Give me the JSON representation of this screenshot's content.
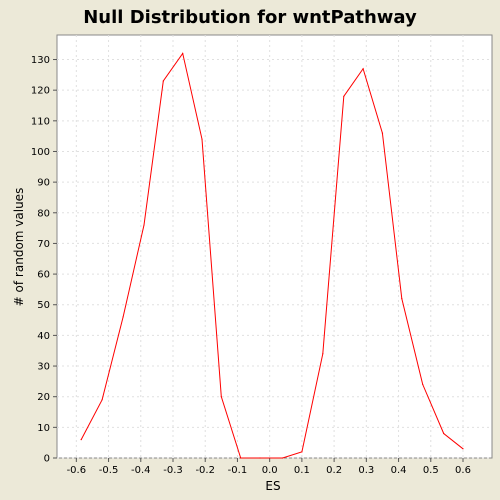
{
  "chart_data": {
    "type": "line",
    "title": "Null Distribution for wntPathway",
    "xlabel": "ES",
    "ylabel": "# of random values",
    "xlim": [
      -0.66,
      0.69
    ],
    "ylim": [
      0,
      138
    ],
    "x_ticks": [
      -0.6,
      -0.5,
      -0.4,
      -0.3,
      -0.2,
      -0.1,
      0.0,
      0.1,
      0.2,
      0.3,
      0.4,
      0.5,
      0.6
    ],
    "x_tick_labels": [
      "-0.6",
      "-0.5",
      "-0.4",
      "-0.3",
      "-0.2",
      "-0.1",
      "0.0",
      "0.1",
      "0.2",
      "0.3",
      "0.4",
      "0.5",
      "0.6"
    ],
    "y_ticks": [
      0,
      10,
      20,
      30,
      40,
      50,
      60,
      70,
      80,
      90,
      100,
      110,
      120,
      130
    ],
    "y_tick_labels": [
      "0",
      "10",
      "20",
      "30",
      "40",
      "50",
      "60",
      "70",
      "80",
      "90",
      "100",
      "110",
      "120",
      "130"
    ],
    "grid": true,
    "legend": "none",
    "series": [
      {
        "color": "#ff0000",
        "x": [
          -0.585,
          -0.52,
          -0.455,
          -0.39,
          -0.33,
          -0.27,
          -0.21,
          -0.15,
          -0.09,
          -0.03,
          0.04,
          0.1,
          0.165,
          0.23,
          0.29,
          0.35,
          0.41,
          0.475,
          0.54,
          0.6
        ],
        "y": [
          6,
          19,
          46,
          76,
          123,
          132,
          104,
          20,
          0,
          0,
          0,
          2,
          34,
          118,
          127,
          106,
          52,
          24,
          8,
          3
        ]
      }
    ],
    "colors": {
      "background": "#ece9d8",
      "plot_background": "#ffffff",
      "grid": "#e0e0e0",
      "line": "#ff0000"
    }
  }
}
